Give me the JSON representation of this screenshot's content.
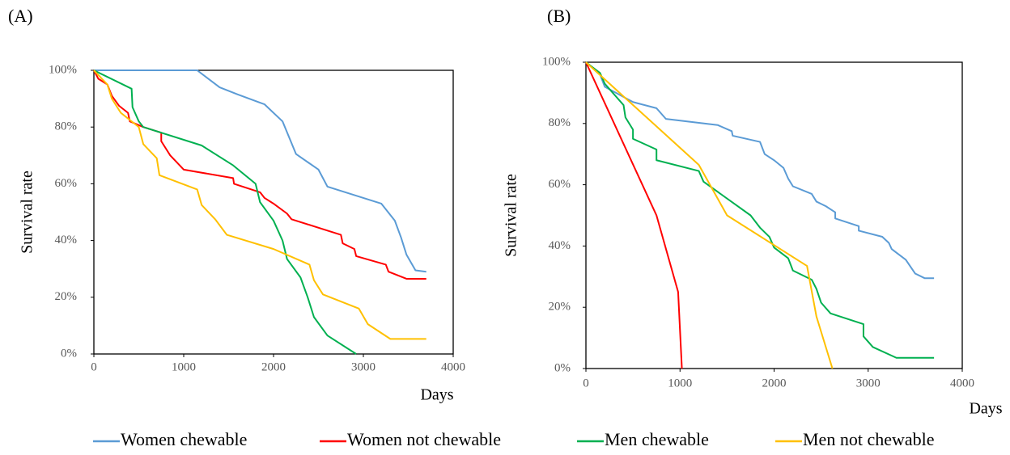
{
  "chart_data": [
    {
      "type": "line",
      "title": "(A)",
      "xlabel": "Days",
      "ylabel": "Survival rate",
      "xlim": [
        0,
        4000
      ],
      "ylim": [
        0,
        100
      ],
      "xticks": [
        0,
        1000,
        2000,
        3000,
        4000
      ],
      "yticks": [
        {
          "value": 0,
          "label": "0%"
        },
        {
          "value": 20,
          "label": "20%"
        },
        {
          "value": 40,
          "label": "40%"
        },
        {
          "value": 60,
          "label": "60%"
        },
        {
          "value": 80,
          "label": "80%"
        },
        {
          "value": 100,
          "label": "100%"
        }
      ],
      "series": [
        {
          "name": "Women chewable",
          "color": "#5b9bd5",
          "x": [
            0,
            1150,
            1400,
            1600,
            1900,
            2100,
            2250,
            2500,
            2600,
            3200,
            3350,
            3420,
            3480,
            3580,
            3700
          ],
          "values": [
            100,
            100,
            94,
            91.5,
            88,
            82,
            70.5,
            65,
            59,
            53,
            47,
            41,
            35,
            29.5,
            29
          ]
        },
        {
          "name": "Women not chewable",
          "color": "#ff0000",
          "x": [
            0,
            50,
            150,
            200,
            280,
            380,
            400,
            550,
            750,
            750,
            850,
            1000,
            1550,
            1560,
            1850,
            1900,
            2000,
            2150,
            2200,
            2600,
            2750,
            2770,
            2900,
            2920,
            3250,
            3280,
            3480,
            3700
          ],
          "values": [
            100,
            97,
            95,
            91,
            87.5,
            85,
            82,
            80,
            78,
            75,
            70,
            65,
            62,
            60,
            57,
            55,
            53,
            49.5,
            47.5,
            43.5,
            42,
            39,
            37,
            34.5,
            31.5,
            29,
            26.5,
            26.5
          ]
        },
        {
          "name": "Men chewable",
          "color": "#00b050",
          "x": [
            0,
            420,
            430,
            500,
            550,
            1200,
            1550,
            1800,
            1850,
            2000,
            2100,
            2150,
            2300,
            2380,
            2450,
            2600,
            2920
          ],
          "values": [
            100,
            93.5,
            87,
            82,
            80,
            73.5,
            66.5,
            60,
            53.5,
            47,
            40,
            33.5,
            27,
            20,
            13,
            6.5,
            0
          ]
        },
        {
          "name": "Men not chewable",
          "color": "#ffc000",
          "x": [
            0,
            150,
            200,
            300,
            500,
            550,
            700,
            730,
            1150,
            1200,
            1350,
            1480,
            2000,
            2400,
            2450,
            2550,
            2950,
            3050,
            3300,
            3700
          ],
          "values": [
            100,
            95,
            90,
            85,
            80,
            74,
            69,
            63,
            58,
            52.5,
            47.5,
            42,
            37,
            31.5,
            26,
            21,
            16,
            10.5,
            5.3,
            5.3
          ]
        }
      ]
    },
    {
      "type": "line",
      "title": "(B)",
      "xlabel": "Days",
      "ylabel": "Survival rate",
      "xlim": [
        0,
        4000
      ],
      "ylim": [
        0,
        100
      ],
      "xticks": [
        0,
        1000,
        2000,
        3000,
        4000
      ],
      "yticks": [
        {
          "value": 0,
          "label": "0%"
        },
        {
          "value": 20,
          "label": "20%"
        },
        {
          "value": 40,
          "label": "40%"
        },
        {
          "value": 60,
          "label": "60%"
        },
        {
          "value": 80,
          "label": "80%"
        },
        {
          "value": 100,
          "label": "100%"
        }
      ],
      "series": [
        {
          "color": "#5b9bd5",
          "x": [
            0,
            150,
            200,
            500,
            750,
            850,
            1400,
            1550,
            1560,
            1850,
            1900,
            2000,
            2100,
            2150,
            2200,
            2400,
            2450,
            2550,
            2600,
            2650,
            2650,
            2900,
            2900,
            3150,
            3220,
            3250,
            3400,
            3500,
            3600,
            3700
          ],
          "values": [
            100,
            96,
            92,
            87,
            85,
            81.5,
            79.5,
            77.5,
            76,
            74,
            70,
            68,
            65.5,
            62,
            59.5,
            57,
            54.5,
            53,
            52,
            51,
            49,
            46.5,
            45,
            43,
            41,
            39,
            35.5,
            31,
            29.5,
            29.5
          ]
        },
        {
          "color": "#ff0000",
          "x": [
            0,
            750,
            980,
            1020
          ],
          "values": [
            100,
            50,
            25,
            0
          ]
        },
        {
          "color": "#00b050",
          "x": [
            0,
            150,
            200,
            400,
            420,
            500,
            500,
            750,
            750,
            1200,
            1250,
            1750,
            1850,
            1950,
            2000,
            2150,
            2200,
            2400,
            2450,
            2500,
            2600,
            2950,
            2950,
            3050,
            3300,
            3700
          ],
          "values": [
            100,
            96.5,
            93,
            86,
            82,
            78,
            75,
            71.5,
            68,
            64.5,
            61,
            50,
            46,
            43,
            39.5,
            36,
            32,
            29,
            26,
            21.5,
            18,
            14.5,
            10.5,
            7,
            3.5,
            3.5
          ]
        },
        {
          "color": "#ffc000",
          "x": [
            0,
            1200,
            1500,
            2350,
            2450,
            2620
          ],
          "values": [
            100,
            66.5,
            50,
            33.5,
            17,
            0
          ]
        }
      ]
    }
  ]
}
